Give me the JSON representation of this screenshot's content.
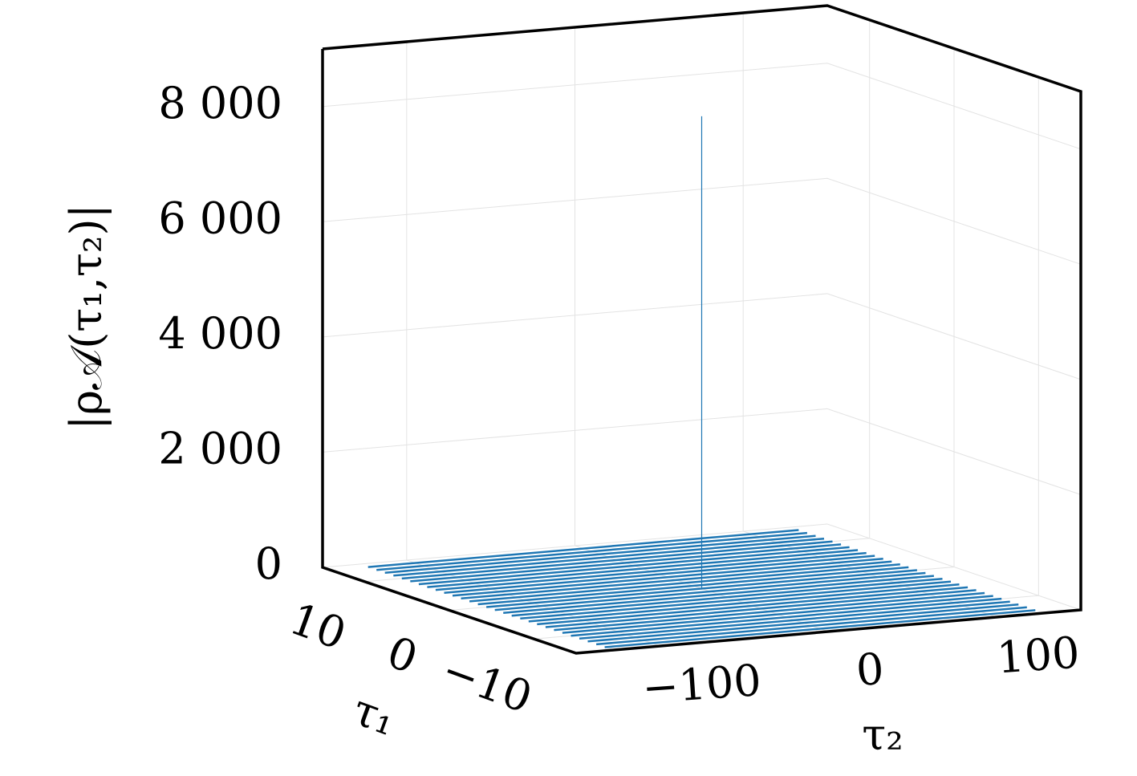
{
  "chart_data": {
    "type": "line3d",
    "zlabel": "|ρ𝒜(τ₁,τ₂)|",
    "xlabel": "τ₂",
    "ylabel": "τ₁",
    "color": "#1f77b4",
    "xlim": [
      -150,
      150
    ],
    "ylim": [
      -15,
      15
    ],
    "zlim": [
      0,
      9000
    ],
    "xticks": [
      {
        "value": -100,
        "label": "−100"
      },
      0,
      100
    ],
    "yticks": [
      10,
      0,
      {
        "value": -10,
        "label": "−10"
      }
    ],
    "zticks": [
      0,
      {
        "value": 2000,
        "label": "2 000"
      },
      {
        "value": 4000,
        "label": "4 000"
      },
      {
        "value": 6000,
        "label": "6 000"
      },
      {
        "value": 8000,
        "label": "8 000"
      }
    ],
    "grid": true,
    "x": [
      -128,
      128
    ],
    "series": [
      {
        "tau1": 14,
        "values": [
          0,
          0
        ]
      },
      {
        "tau1": 13,
        "values": [
          0,
          0
        ]
      },
      {
        "tau1": 12,
        "values": [
          0,
          0
        ]
      },
      {
        "tau1": 11,
        "values": [
          0,
          0
        ]
      },
      {
        "tau1": 10,
        "values": [
          0,
          0
        ]
      },
      {
        "tau1": 9,
        "values": [
          0,
          0
        ]
      },
      {
        "tau1": 8,
        "values": [
          0,
          0
        ]
      },
      {
        "tau1": 7,
        "values": [
          0,
          0
        ]
      },
      {
        "tau1": 6,
        "values": [
          0,
          0
        ]
      },
      {
        "tau1": 5,
        "values": [
          0,
          0
        ]
      },
      {
        "tau1": 4,
        "values": [
          0,
          0
        ]
      },
      {
        "tau1": 3,
        "values": [
          0,
          0
        ]
      },
      {
        "tau1": 2,
        "values": [
          0,
          0
        ]
      },
      {
        "tau1": 1,
        "values": [
          0,
          0
        ]
      },
      {
        "tau1": 0,
        "values": [
          0,
          0
        ]
      },
      {
        "tau1": -1,
        "values": [
          0,
          0
        ]
      },
      {
        "tau1": -2,
        "values": [
          0,
          0
        ]
      },
      {
        "tau1": -3,
        "values": [
          0,
          0
        ]
      },
      {
        "tau1": -4,
        "values": [
          0,
          0
        ]
      },
      {
        "tau1": -5,
        "values": [
          0,
          0
        ]
      },
      {
        "tau1": -6,
        "values": [
          0,
          0
        ]
      },
      {
        "tau1": -7,
        "values": [
          0,
          0
        ]
      },
      {
        "tau1": -8,
        "values": [
          0,
          0
        ]
      },
      {
        "tau1": -9,
        "values": [
          0,
          0
        ]
      },
      {
        "tau1": -10,
        "values": [
          0,
          0
        ]
      },
      {
        "tau1": -11,
        "values": [
          0,
          0
        ]
      },
      {
        "tau1": -12,
        "values": [
          0,
          0
        ]
      },
      {
        "tau1": -13,
        "values": [
          0,
          0
        ]
      },
      {
        "tau1": -14,
        "values": [
          0,
          0
        ]
      }
    ],
    "peak": {
      "tau1": 0,
      "tau2": 0,
      "value": 8200
    }
  }
}
